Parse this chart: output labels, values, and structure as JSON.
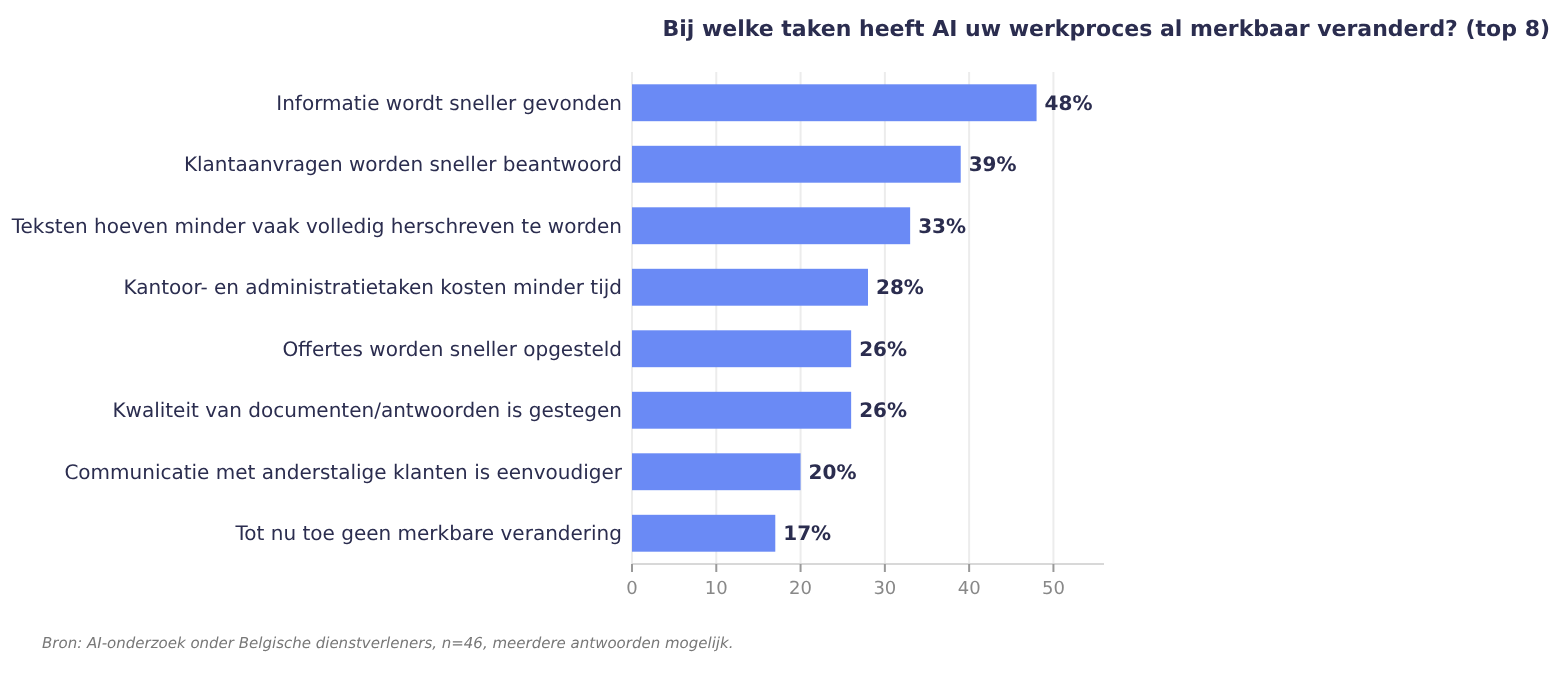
{
  "chart_data": {
    "type": "bar",
    "orientation": "horizontal",
    "title": "Bij welke taken heeft AI uw werkproces al merkbaar veranderd? (top 8)",
    "categories": [
      "Informatie wordt sneller gevonden",
      "Klantaanvragen worden sneller beantwoord",
      "Teksten hoeven minder vaak volledig herschreven te worden",
      "Kantoor- en administratietaken kosten minder tijd",
      "Offertes worden sneller opgesteld",
      "Kwaliteit van documenten/antwoorden is gestegen",
      "Communicatie met anderstalige klanten is eenvoudiger",
      "Tot nu toe geen merkbare verandering"
    ],
    "values": [
      48,
      39,
      33,
      28,
      26,
      26,
      20,
      17
    ],
    "value_labels": [
      "48%",
      "39%",
      "33%",
      "28%",
      "26%",
      "26%",
      "20%",
      "17%"
    ],
    "color": "#6a8af5",
    "xlim": [
      0,
      56
    ],
    "xticks": [
      0,
      10,
      20,
      30,
      40,
      50
    ],
    "grid": "x",
    "annotations": [
      "Bron: AI-onderzoek onder Belgische dienstverleners, n=46, meerdere antwoorden mogelijk."
    ]
  }
}
